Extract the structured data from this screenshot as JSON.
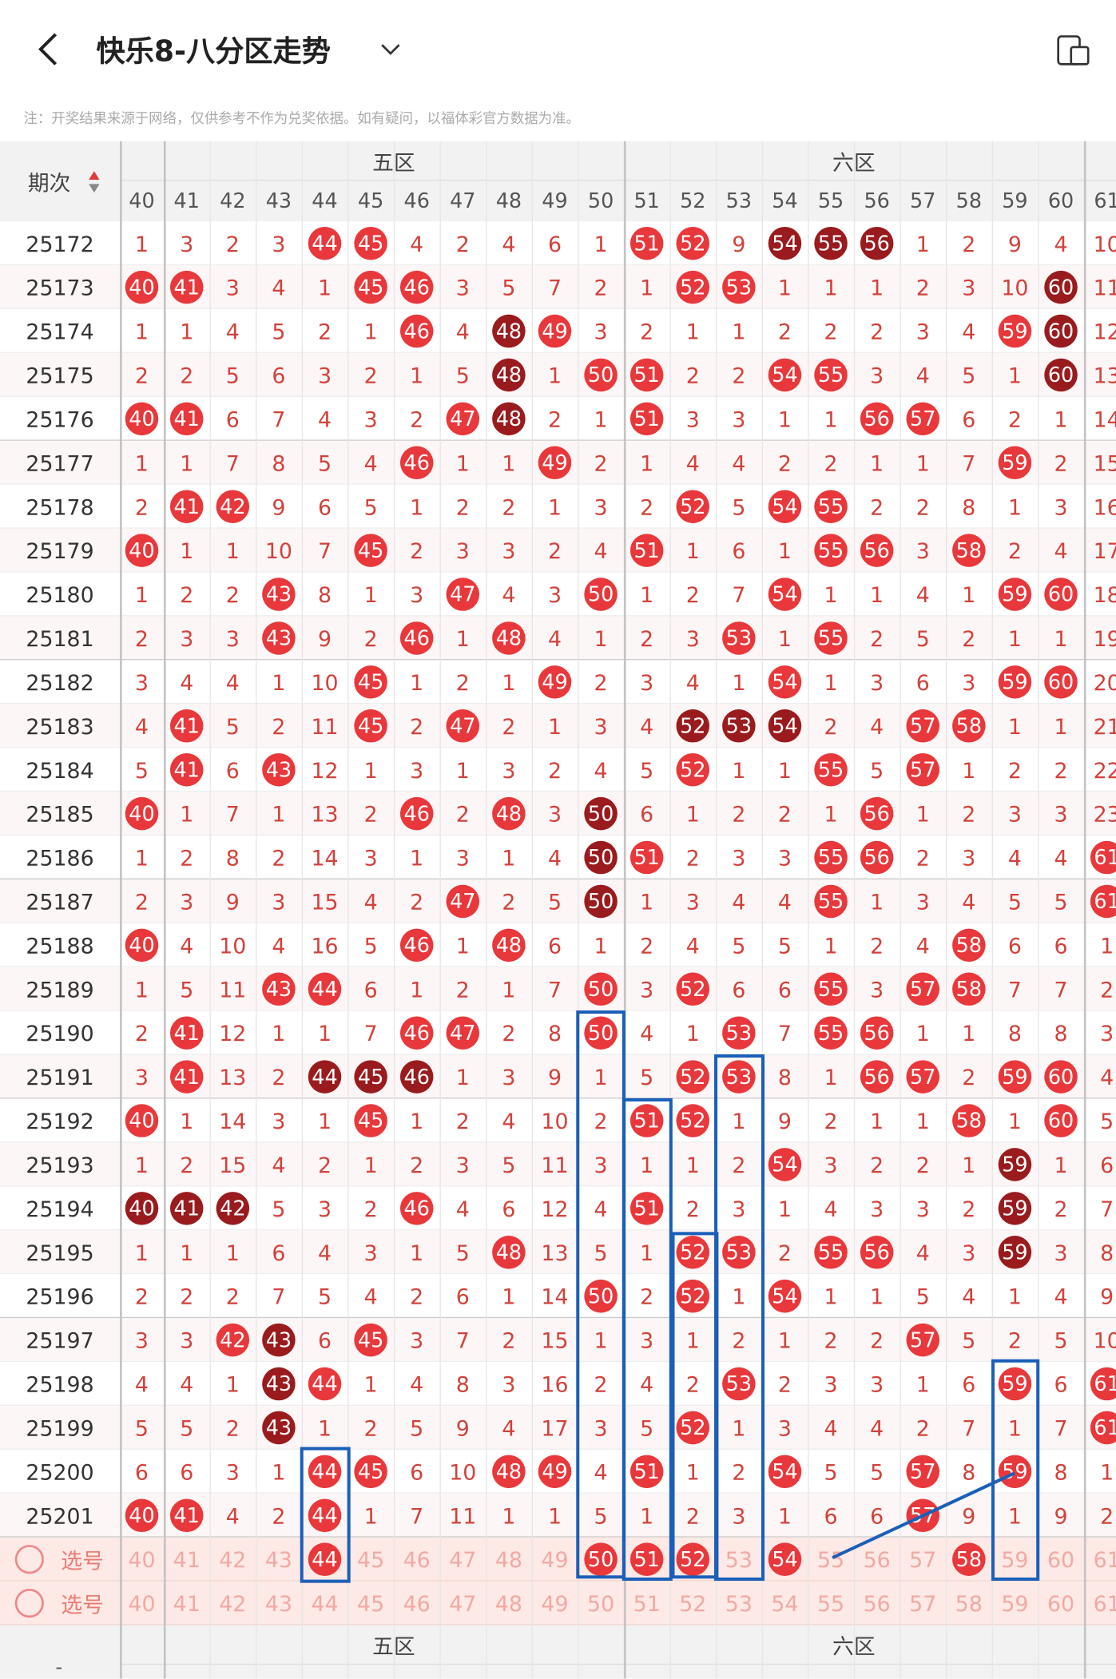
{
  "header": {
    "title": "快乐8-八分区走势",
    "note": "注：开奖结果来源于网络，仅供参考不作为兑奖依据。如有疑问，以福体彩官方数据为准。"
  },
  "table": {
    "period_label": "期次",
    "zones": [
      "五区",
      "六区"
    ],
    "numbers": [
      40,
      41,
      42,
      43,
      44,
      45,
      46,
      47,
      48,
      49,
      50,
      51,
      52,
      53,
      54,
      55,
      56,
      57,
      58,
      59,
      60,
      61
    ],
    "rows": [
      {
        "period": "25172",
        "cells": [
          1,
          3,
          2,
          3,
          44,
          45,
          4,
          2,
          4,
          6,
          1,
          51,
          52,
          9,
          54,
          55,
          56,
          1,
          2,
          9,
          4,
          10
        ],
        "marks": "....rr.....rr.ddd....."
      },
      {
        "period": "25173",
        "cells": [
          40,
          41,
          3,
          4,
          1,
          45,
          46,
          3,
          5,
          7,
          2,
          1,
          52,
          53,
          1,
          1,
          1,
          2,
          3,
          10,
          60,
          11
        ],
        "marks": "rr...rr.....rr......d."
      },
      {
        "period": "25174",
        "cells": [
          1,
          1,
          4,
          5,
          2,
          1,
          46,
          4,
          48,
          49,
          3,
          2,
          1,
          1,
          2,
          2,
          2,
          3,
          4,
          59,
          60,
          12
        ],
        "marks": "......r.dr.........rd."
      },
      {
        "period": "25175",
        "cells": [
          2,
          2,
          5,
          6,
          3,
          2,
          1,
          5,
          48,
          1,
          50,
          51,
          2,
          2,
          54,
          55,
          3,
          4,
          5,
          1,
          60,
          13
        ],
        "marks": "........d.rr..rr....d."
      },
      {
        "period": "25176",
        "cells": [
          40,
          41,
          6,
          7,
          4,
          3,
          2,
          47,
          48,
          2,
          1,
          51,
          3,
          3,
          1,
          1,
          56,
          57,
          6,
          2,
          1,
          14
        ],
        "marks": "rr.....rd..r....rr...."
      },
      {
        "period": "25177",
        "cells": [
          1,
          1,
          7,
          8,
          5,
          4,
          46,
          1,
          1,
          49,
          2,
          1,
          4,
          4,
          2,
          2,
          1,
          1,
          7,
          59,
          2,
          15
        ],
        "marks": "......r..r.........r.."
      },
      {
        "period": "25178",
        "cells": [
          2,
          41,
          42,
          9,
          6,
          5,
          1,
          2,
          2,
          1,
          3,
          2,
          52,
          5,
          54,
          55,
          2,
          2,
          8,
          1,
          3,
          16
        ],
        "marks": ".rr.........r.rr......"
      },
      {
        "period": "25179",
        "cells": [
          40,
          1,
          1,
          10,
          7,
          45,
          2,
          3,
          3,
          2,
          4,
          51,
          1,
          6,
          1,
          55,
          56,
          3,
          58,
          2,
          4,
          17
        ],
        "marks": "r....r.....r...rr.r..."
      },
      {
        "period": "25180",
        "cells": [
          1,
          2,
          2,
          43,
          8,
          1,
          3,
          47,
          4,
          3,
          50,
          1,
          2,
          7,
          54,
          1,
          1,
          4,
          1,
          59,
          60,
          18
        ],
        "marks": "...r...r..r...r....rr."
      },
      {
        "period": "25181",
        "cells": [
          2,
          3,
          3,
          43,
          9,
          2,
          46,
          1,
          48,
          4,
          1,
          2,
          3,
          53,
          1,
          55,
          2,
          5,
          2,
          1,
          1,
          19
        ],
        "marks": "...r..r.r....r.r......"
      },
      {
        "period": "25182",
        "cells": [
          3,
          4,
          4,
          1,
          10,
          45,
          1,
          2,
          1,
          49,
          2,
          3,
          4,
          1,
          54,
          1,
          3,
          6,
          3,
          59,
          60,
          20
        ],
        "marks": ".....r...r....r....rr."
      },
      {
        "period": "25183",
        "cells": [
          4,
          41,
          5,
          2,
          11,
          45,
          2,
          47,
          2,
          1,
          3,
          4,
          52,
          53,
          54,
          2,
          4,
          57,
          58,
          1,
          1,
          21
        ],
        "marks": ".r...r.r....ddd..rr..."
      },
      {
        "period": "25184",
        "cells": [
          5,
          41,
          6,
          43,
          12,
          1,
          3,
          1,
          3,
          2,
          4,
          5,
          52,
          1,
          1,
          55,
          5,
          57,
          1,
          2,
          2,
          22
        ],
        "marks": ".r.r........r..r.r...."
      },
      {
        "period": "25185",
        "cells": [
          40,
          1,
          7,
          1,
          13,
          2,
          46,
          2,
          48,
          3,
          50,
          6,
          1,
          2,
          2,
          1,
          56,
          1,
          2,
          3,
          3,
          23
        ],
        "marks": "r.....r.r.d.....r....."
      },
      {
        "period": "25186",
        "cells": [
          1,
          2,
          8,
          2,
          14,
          3,
          1,
          3,
          1,
          4,
          50,
          51,
          2,
          3,
          3,
          55,
          56,
          2,
          3,
          4,
          4,
          61
        ],
        "marks": "..........dr...rr....r"
      },
      {
        "period": "25187",
        "cells": [
          2,
          3,
          9,
          3,
          15,
          4,
          2,
          47,
          2,
          5,
          50,
          1,
          3,
          4,
          4,
          55,
          1,
          3,
          4,
          5,
          5,
          61
        ],
        "marks": ".......r..d....r.....r"
      },
      {
        "period": "25188",
        "cells": [
          40,
          4,
          10,
          4,
          16,
          5,
          46,
          1,
          48,
          6,
          1,
          2,
          4,
          5,
          5,
          1,
          2,
          4,
          58,
          6,
          6,
          1
        ],
        "marks": "r.....r.r.........r..."
      },
      {
        "period": "25189",
        "cells": [
          1,
          5,
          11,
          43,
          44,
          6,
          1,
          2,
          1,
          7,
          50,
          3,
          52,
          6,
          6,
          55,
          3,
          57,
          58,
          7,
          7,
          2
        ],
        "marks": "...rr.....r.r..r.rr..."
      },
      {
        "period": "25190",
        "cells": [
          2,
          41,
          12,
          1,
          1,
          7,
          46,
          47,
          2,
          8,
          50,
          4,
          1,
          53,
          7,
          55,
          56,
          1,
          1,
          8,
          8,
          3
        ],
        "marks": ".r....rr..r..r.rr....."
      },
      {
        "period": "25191",
        "cells": [
          3,
          41,
          13,
          2,
          44,
          45,
          46,
          1,
          3,
          9,
          1,
          5,
          52,
          53,
          8,
          1,
          56,
          57,
          2,
          59,
          60,
          4
        ],
        "marks": ".r..ddd.....rr..rr.rr."
      },
      {
        "period": "25192",
        "cells": [
          40,
          1,
          14,
          3,
          1,
          45,
          1,
          2,
          4,
          10,
          2,
          51,
          52,
          1,
          9,
          2,
          1,
          1,
          58,
          1,
          60,
          5
        ],
        "marks": "r....r.....rr.....r.r."
      },
      {
        "period": "25193",
        "cells": [
          1,
          2,
          15,
          4,
          2,
          1,
          2,
          3,
          5,
          11,
          3,
          1,
          1,
          2,
          54,
          3,
          2,
          2,
          1,
          59,
          1,
          6
        ],
        "marks": "..............r....d.."
      },
      {
        "period": "25194",
        "cells": [
          40,
          41,
          42,
          5,
          3,
          2,
          46,
          4,
          6,
          12,
          4,
          51,
          2,
          3,
          1,
          4,
          3,
          3,
          2,
          59,
          2,
          7
        ],
        "marks": "ddd...r....r.......d.."
      },
      {
        "period": "25195",
        "cells": [
          1,
          1,
          1,
          6,
          4,
          3,
          1,
          5,
          48,
          13,
          5,
          1,
          52,
          53,
          2,
          55,
          56,
          4,
          3,
          59,
          3,
          8
        ],
        "marks": "........r...rr.rr..d.."
      },
      {
        "period": "25196",
        "cells": [
          2,
          2,
          2,
          7,
          5,
          4,
          2,
          6,
          1,
          14,
          50,
          2,
          52,
          1,
          54,
          1,
          1,
          5,
          4,
          1,
          4,
          9
        ],
        "marks": "..........r.r.r......."
      },
      {
        "period": "25197",
        "cells": [
          3,
          3,
          42,
          43,
          6,
          45,
          3,
          7,
          2,
          15,
          1,
          3,
          1,
          2,
          1,
          2,
          2,
          57,
          5,
          2,
          5,
          10
        ],
        "marks": "..rd.r...........r...."
      },
      {
        "period": "25198",
        "cells": [
          4,
          4,
          1,
          43,
          44,
          1,
          4,
          8,
          3,
          16,
          2,
          4,
          2,
          53,
          2,
          3,
          3,
          1,
          6,
          59,
          6,
          61
        ],
        "marks": "...dr........r.....r.r"
      },
      {
        "period": "25199",
        "cells": [
          5,
          5,
          2,
          43,
          1,
          2,
          5,
          9,
          4,
          17,
          3,
          5,
          52,
          1,
          3,
          4,
          4,
          2,
          7,
          1,
          7,
          61
        ],
        "marks": "...d........r........r"
      },
      {
        "period": "25200",
        "cells": [
          6,
          6,
          3,
          1,
          44,
          45,
          6,
          10,
          48,
          49,
          4,
          51,
          1,
          2,
          54,
          5,
          5,
          57,
          8,
          59,
          8,
          1
        ],
        "marks": "....rr..rr.r..r..r.r.."
      },
      {
        "period": "25201",
        "cells": [
          40,
          41,
          4,
          2,
          44,
          1,
          7,
          11,
          1,
          1,
          5,
          1,
          2,
          3,
          1,
          6,
          6,
          57,
          9,
          1,
          9,
          2
        ],
        "marks": "rr..r............r...."
      }
    ],
    "select_label": "选号",
    "select_marks": [
      "....r.....rrr.r...r...",
      "......................"
    ],
    "bottom_more": "-"
  }
}
